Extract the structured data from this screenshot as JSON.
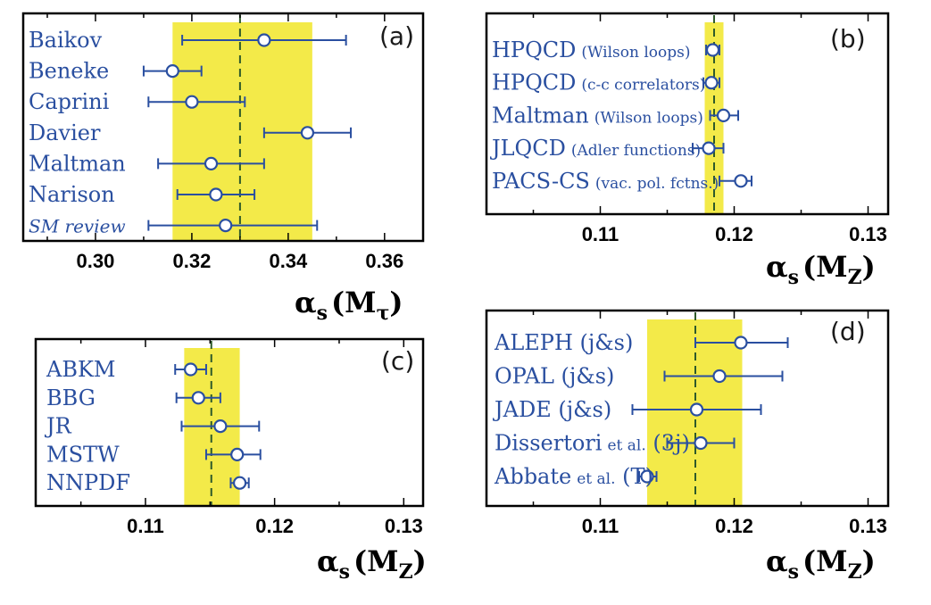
{
  "chart_data": [
    {
      "type": "scatter",
      "panel_tag": "(a)",
      "axis_title_main": "α",
      "axis_title_sub": "s",
      "axis_title_arg": "(M",
      "axis_title_arg_sub": "τ",
      "axis_title_close": ")",
      "xlim": [
        0.285,
        0.368
      ],
      "x_ticks": [
        "0.30",
        "0.32",
        "0.34",
        "0.36"
      ],
      "x_tick_values": [
        0.3,
        0.32,
        0.34,
        0.36
      ],
      "band": [
        0.316,
        0.345
      ],
      "average": 0.33,
      "points": [
        {
          "label": "Baikov",
          "small": "",
          "value": 0.335,
          "lo": 0.318,
          "hi": 0.352
        },
        {
          "label": "Beneke",
          "small": "",
          "value": 0.316,
          "lo": 0.31,
          "hi": 0.322
        },
        {
          "label": "Caprini",
          "small": "",
          "value": 0.32,
          "lo": 0.311,
          "hi": 0.331
        },
        {
          "label": "Davier",
          "small": "",
          "value": 0.344,
          "lo": 0.335,
          "hi": 0.353
        },
        {
          "label": "Maltman",
          "small": "",
          "value": 0.324,
          "lo": 0.313,
          "hi": 0.335
        },
        {
          "label": "Narison",
          "small": "",
          "value": 0.325,
          "lo": 0.317,
          "hi": 0.333
        },
        {
          "label": "SM review",
          "small": "",
          "value": 0.327,
          "lo": 0.311,
          "hi": 0.346,
          "italic": true
        }
      ]
    },
    {
      "type": "scatter",
      "panel_tag": "(b)",
      "axis_title_main": "α",
      "axis_title_sub": "s",
      "axis_title_arg": "(M",
      "axis_title_arg_sub": "Z",
      "axis_title_close": ")",
      "xlim": [
        0.1015,
        0.1315
      ],
      "x_ticks": [
        "0.11",
        "0.12",
        "0.13"
      ],
      "x_tick_values": [
        0.11,
        0.12,
        0.13
      ],
      "band": [
        0.1178,
        0.1192
      ],
      "average": 0.1185,
      "points": [
        {
          "label": "HPQCD",
          "small": "(Wilson loops)",
          "value": 0.1184,
          "lo": 0.1179,
          "hi": 0.1189
        },
        {
          "label": "HPQCD",
          "small": "(c-c correlators)",
          "value": 0.1183,
          "lo": 0.1177,
          "hi": 0.1189
        },
        {
          "label": "Maltman",
          "small": "(Wilson loops)",
          "value": 0.1192,
          "lo": 0.1182,
          "hi": 0.1203
        },
        {
          "label": "JLQCD",
          "small": "(Adler functions)",
          "value": 0.1181,
          "lo": 0.1169,
          "hi": 0.1192
        },
        {
          "label": "PACS-CS",
          "small": "(vac. pol. fctns.)",
          "value": 0.1205,
          "lo": 0.1189,
          "hi": 0.1213
        }
      ]
    },
    {
      "type": "scatter",
      "panel_tag": "(c)",
      "axis_title_main": "α",
      "axis_title_sub": "s",
      "axis_title_arg": "(M",
      "axis_title_arg_sub": "Z",
      "axis_title_close": ")",
      "xlim": [
        0.1015,
        0.1315
      ],
      "x_ticks": [
        "0.11",
        "0.12",
        "0.13"
      ],
      "x_tick_values": [
        0.11,
        0.12,
        0.13
      ],
      "band": [
        0.113,
        0.1173
      ],
      "average": 0.1151,
      "points": [
        {
          "label": "ABKM",
          "small": "",
          "value": 0.1135,
          "lo": 0.1123,
          "hi": 0.1147
        },
        {
          "label": "BBG",
          "small": "",
          "value": 0.1141,
          "lo": 0.1124,
          "hi": 0.1158
        },
        {
          "label": "JR",
          "small": "",
          "value": 0.1158,
          "lo": 0.1128,
          "hi": 0.1188
        },
        {
          "label": "MSTW",
          "small": "",
          "value": 0.1171,
          "lo": 0.1147,
          "hi": 0.1189
        },
        {
          "label": "NNPDF",
          "small": "",
          "value": 0.1173,
          "lo": 0.1166,
          "hi": 0.118
        }
      ]
    },
    {
      "type": "scatter",
      "panel_tag": "(d)",
      "axis_title_main": "α",
      "axis_title_sub": "s",
      "axis_title_arg": "(M",
      "axis_title_arg_sub": "Z",
      "axis_title_close": ")",
      "xlim": [
        0.1015,
        0.1315
      ],
      "x_ticks": [
        "0.11",
        "0.12",
        "0.13"
      ],
      "x_tick_values": [
        0.11,
        0.12,
        0.13
      ],
      "band": [
        0.1135,
        0.1206
      ],
      "average": 0.1171,
      "points": [
        {
          "label": "ALEPH (j&s)",
          "small": "",
          "value": 0.1205,
          "lo": 0.1171,
          "hi": 0.124
        },
        {
          "label": "OPAL",
          "small": "",
          "label2": " (j&s)",
          "value": 0.1189,
          "lo": 0.1148,
          "hi": 0.1236
        },
        {
          "label": "JADE",
          "small": "",
          "label2": " (j&s)",
          "value": 0.1172,
          "lo": 0.1124,
          "hi": 0.122
        },
        {
          "label": "Dissertori",
          "small": "et al.",
          "label2": " (3j)",
          "value": 0.1175,
          "lo": 0.115,
          "hi": 0.12
        },
        {
          "label": "Abbate",
          "small": "et al.",
          "label2": " (T)",
          "value": 0.1135,
          "lo": 0.1129,
          "hi": 0.1142
        }
      ]
    }
  ]
}
